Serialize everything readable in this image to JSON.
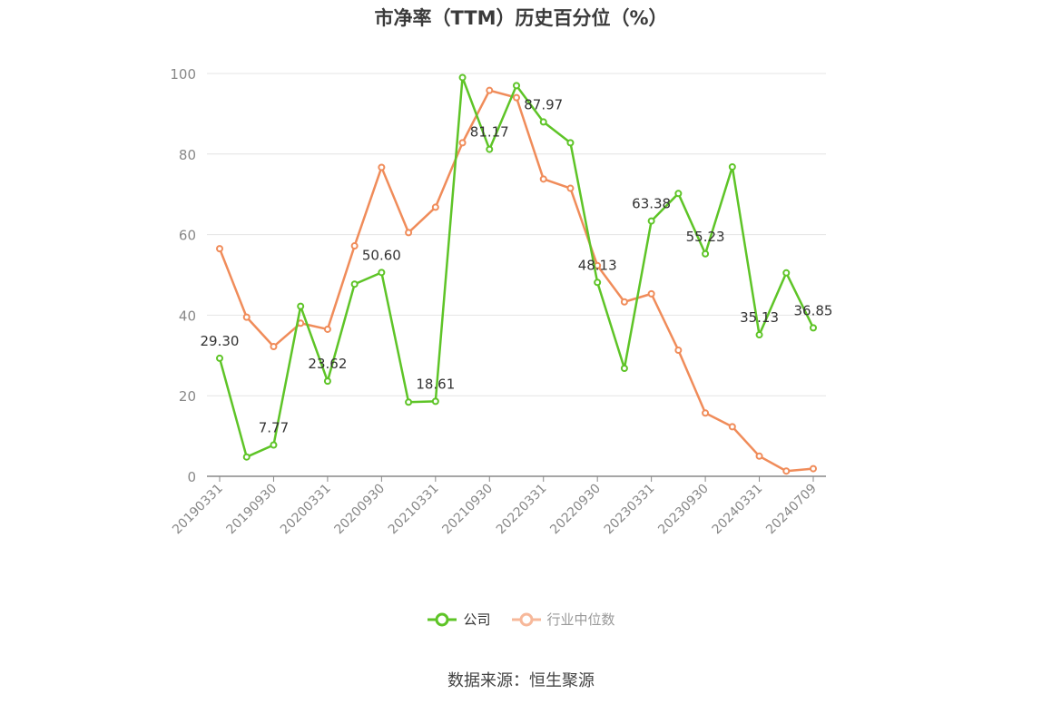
{
  "chart_data": {
    "type": "line",
    "title": "市净率（TTM）历史百分位（%）",
    "ylim": [
      0,
      100
    ],
    "yticks": [
      0,
      20,
      40,
      60,
      80,
      100
    ],
    "grid": true,
    "legend_position": "bottom-center",
    "x": [
      "20190331",
      "20190630",
      "20190930",
      "20191231",
      "20200331",
      "20200630",
      "20200930",
      "20201231",
      "20210331",
      "20210630",
      "20210930",
      "20211231",
      "20220331",
      "20220630",
      "20220930",
      "20221231",
      "20230331",
      "20230630",
      "20230930",
      "20231231",
      "20240331",
      "20240630",
      "20240709"
    ],
    "x_tick_labels": [
      "20190331",
      "20190930",
      "20200331",
      "20200930",
      "20210331",
      "20210930",
      "20220331",
      "20220930",
      "20230331",
      "20230930",
      "20240331",
      "20240709"
    ],
    "series": [
      {
        "name": "公司",
        "color": "#5ec427",
        "values": [
          29.3,
          4.8,
          7.77,
          42.2,
          23.62,
          47.7,
          50.6,
          18.4,
          18.61,
          99.0,
          81.17,
          97.0,
          87.97,
          82.8,
          48.13,
          26.8,
          63.38,
          70.2,
          55.23,
          76.8,
          35.13,
          50.5,
          36.85
        ],
        "labels": [
          "29.30",
          "",
          "7.77",
          "",
          "23.62",
          "",
          "50.60",
          "",
          "18.61",
          "",
          "81.17",
          "",
          "87.97",
          "",
          "48.13",
          "",
          "63.38",
          "",
          "55.23",
          "",
          "35.13",
          "",
          "36.85"
        ]
      },
      {
        "name": "行业中位数",
        "color": "#f08c5a",
        "values": [
          56.5,
          39.5,
          32.2,
          38.0,
          36.5,
          57.2,
          76.7,
          60.5,
          66.8,
          82.8,
          95.8,
          94.0,
          73.8,
          71.5,
          52.3,
          43.3,
          45.3,
          31.3,
          15.7,
          12.3,
          5.0,
          1.3,
          1.9
        ]
      }
    ]
  },
  "source": "数据来源：恒生聚源"
}
